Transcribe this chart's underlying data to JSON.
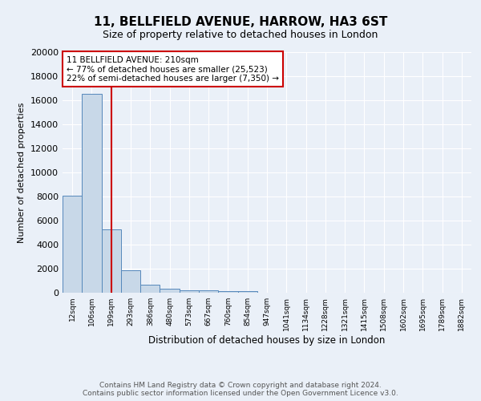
{
  "title1": "11, BELLFIELD AVENUE, HARROW, HA3 6ST",
  "title2": "Size of property relative to detached houses in London",
  "xlabel": "Distribution of detached houses by size in London",
  "ylabel": "Number of detached properties",
  "footer": "Contains HM Land Registry data © Crown copyright and database right 2024.\nContains public sector information licensed under the Open Government Licence v3.0.",
  "categories": [
    "12sqm",
    "106sqm",
    "199sqm",
    "293sqm",
    "386sqm",
    "480sqm",
    "573sqm",
    "667sqm",
    "760sqm",
    "854sqm",
    "947sqm",
    "1041sqm",
    "1134sqm",
    "1228sqm",
    "1321sqm",
    "1415sqm",
    "1508sqm",
    "1602sqm",
    "1695sqm",
    "1789sqm",
    "1882sqm"
  ],
  "values": [
    8100,
    16500,
    5300,
    1850,
    700,
    320,
    210,
    180,
    160,
    140,
    0,
    0,
    0,
    0,
    0,
    0,
    0,
    0,
    0,
    0,
    0
  ],
  "bar_color": "#c8d8e8",
  "bar_edge_color": "#5588bb",
  "vertical_line_x": 2,
  "annotation_text": "11 BELLFIELD AVENUE: 210sqm\n← 77% of detached houses are smaller (25,523)\n22% of semi-detached houses are larger (7,350) →",
  "annotation_box_color": "#ffffff",
  "annotation_box_edge": "#cc0000",
  "ylim": [
    0,
    20000
  ],
  "yticks": [
    0,
    2000,
    4000,
    6000,
    8000,
    10000,
    12000,
    14000,
    16000,
    18000,
    20000
  ],
  "bg_color": "#eaf0f8",
  "plot_bg_color": "#eaf0f8",
  "grid_color": "#ffffff",
  "vline_color": "#cc0000",
  "title1_fontsize": 11,
  "title2_fontsize": 9,
  "ylabel_fontsize": 8,
  "xlabel_fontsize": 8.5,
  "tick_fontsize": 8,
  "xtick_fontsize": 6.5,
  "ann_fontsize": 7.5,
  "footer_fontsize": 6.5
}
